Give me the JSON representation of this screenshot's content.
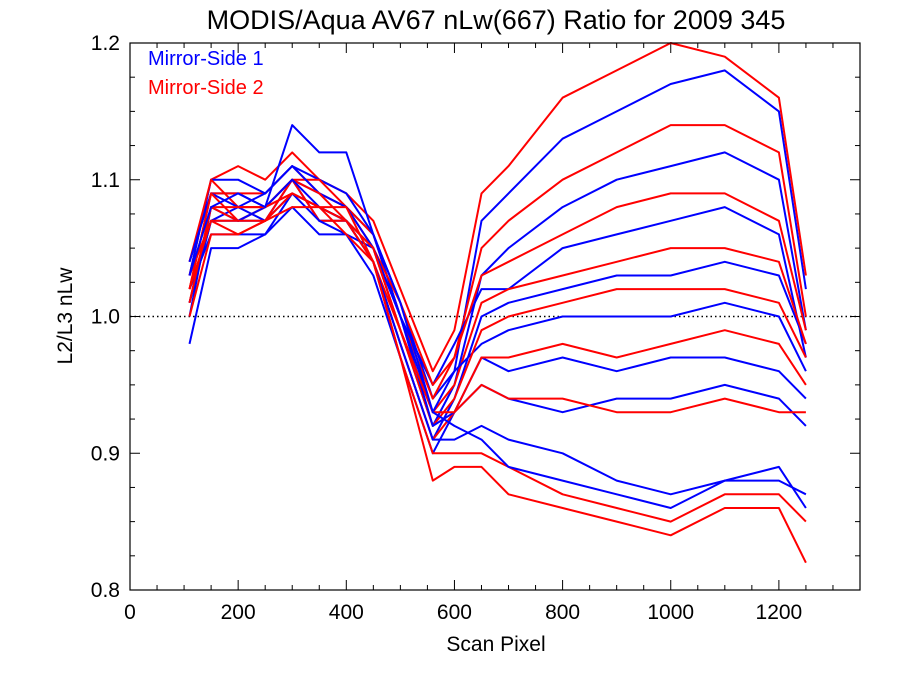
{
  "chart_data": {
    "type": "line",
    "title": "MODIS/Aqua AV67 nLw(667) Ratio for 2009 345",
    "xlabel": "Scan Pixel",
    "ylabel": "L2/L3 nLw",
    "xlim": [
      0,
      1350
    ],
    "ylim": [
      0.8,
      1.2
    ],
    "xticks": [
      0,
      200,
      400,
      600,
      800,
      1000,
      1200
    ],
    "yticks": [
      0.8,
      0.9,
      1.0,
      1.1,
      1.2
    ],
    "xtick_labels": [
      "0",
      "200",
      "400",
      "600",
      "800",
      "1000",
      "1200"
    ],
    "ytick_labels": [
      "0.8",
      "0.9",
      "1.0",
      "1.1",
      "1.2"
    ],
    "reference_line": {
      "y": 1.0,
      "style": "dotted"
    },
    "legend_position": "top-left",
    "x": [
      110,
      150,
      200,
      250,
      300,
      350,
      400,
      450,
      500,
      560,
      600,
      650,
      700,
      800,
      900,
      1000,
      1100,
      1200,
      1250
    ],
    "series": [
      {
        "name": "Mirror-Side 1",
        "color": "#0000ff",
        "lines": [
          [
            1.04,
            1.09,
            1.09,
            1.08,
            1.1,
            1.09,
            1.08,
            1.06,
            1.01,
            0.94,
            0.96,
            1.07,
            1.09,
            1.13,
            1.15,
            1.17,
            1.18,
            1.15,
            1.02
          ],
          [
            1.01,
            1.07,
            1.08,
            1.07,
            1.09,
            1.08,
            1.07,
            1.05,
            0.99,
            0.92,
            0.95,
            1.03,
            1.05,
            1.08,
            1.1,
            1.11,
            1.12,
            1.1,
            0.99
          ],
          [
            1.03,
            1.1,
            1.1,
            1.09,
            1.11,
            1.1,
            1.09,
            1.06,
            1.0,
            0.95,
            0.98,
            1.02,
            1.02,
            1.05,
            1.06,
            1.07,
            1.08,
            1.06,
            0.97
          ],
          [
            1.0,
            1.08,
            1.07,
            1.07,
            1.1,
            1.07,
            1.07,
            1.04,
            0.98,
            0.91,
            0.94,
            1.0,
            1.01,
            1.02,
            1.03,
            1.03,
            1.04,
            1.03,
            0.98
          ],
          [
            1.02,
            1.06,
            1.06,
            1.06,
            1.08,
            1.06,
            1.06,
            1.05,
            1.0,
            0.93,
            0.96,
            0.98,
            0.99,
            1.0,
            1.0,
            1.0,
            1.01,
            1.0,
            0.96
          ],
          [
            0.98,
            1.05,
            1.05,
            1.06,
            1.09,
            1.07,
            1.06,
            1.03,
            0.97,
            0.9,
            0.93,
            0.97,
            0.96,
            0.97,
            0.96,
            0.97,
            0.97,
            0.96,
            0.94
          ],
          [
            1.04,
            1.09,
            1.08,
            1.09,
            1.11,
            1.09,
            1.08,
            1.05,
            1.0,
            0.92,
            0.93,
            0.95,
            0.94,
            0.93,
            0.94,
            0.94,
            0.95,
            0.94,
            0.92
          ],
          [
            1.01,
            1.07,
            1.07,
            1.08,
            1.1,
            1.08,
            1.07,
            1.04,
            0.98,
            0.91,
            0.91,
            0.92,
            0.91,
            0.9,
            0.88,
            0.87,
            0.88,
            0.88,
            0.87
          ],
          [
            1.03,
            1.08,
            1.09,
            1.08,
            1.14,
            1.12,
            1.12,
            1.06,
            1.01,
            0.93,
            0.92,
            0.91,
            0.89,
            0.88,
            0.87,
            0.86,
            0.88,
            0.89,
            0.86
          ]
        ]
      },
      {
        "name": "Mirror-Side 2",
        "color": "#ff0000",
        "lines": [
          [
            1.03,
            1.1,
            1.11,
            1.1,
            1.12,
            1.1,
            1.09,
            1.07,
            1.02,
            0.96,
            0.99,
            1.09,
            1.11,
            1.16,
            1.18,
            1.2,
            1.19,
            1.16,
            1.03
          ],
          [
            1.02,
            1.09,
            1.09,
            1.09,
            1.11,
            1.09,
            1.08,
            1.06,
            1.0,
            0.94,
            0.97,
            1.05,
            1.07,
            1.1,
            1.12,
            1.14,
            1.14,
            1.12,
            1.0
          ],
          [
            1.04,
            1.1,
            1.08,
            1.08,
            1.1,
            1.1,
            1.08,
            1.05,
            1.01,
            0.95,
            0.97,
            1.03,
            1.04,
            1.06,
            1.08,
            1.09,
            1.09,
            1.07,
            0.99
          ],
          [
            1.01,
            1.08,
            1.07,
            1.08,
            1.09,
            1.08,
            1.07,
            1.04,
            0.99,
            0.93,
            0.95,
            1.01,
            1.02,
            1.03,
            1.04,
            1.05,
            1.05,
            1.04,
            0.98
          ],
          [
            1.03,
            1.07,
            1.06,
            1.07,
            1.1,
            1.07,
            1.07,
            1.05,
            0.99,
            0.92,
            0.94,
            0.99,
            1.0,
            1.01,
            1.02,
            1.02,
            1.02,
            1.01,
            0.97
          ],
          [
            1.0,
            1.06,
            1.06,
            1.07,
            1.08,
            1.08,
            1.06,
            1.04,
            0.98,
            0.91,
            0.93,
            0.97,
            0.97,
            0.98,
            0.97,
            0.98,
            0.99,
            0.98,
            0.95
          ],
          [
            1.02,
            1.09,
            1.07,
            1.08,
            1.1,
            1.09,
            1.07,
            1.05,
            0.99,
            0.93,
            0.93,
            0.95,
            0.94,
            0.94,
            0.93,
            0.93,
            0.94,
            0.93,
            0.93
          ],
          [
            1.01,
            1.08,
            1.08,
            1.08,
            1.09,
            1.08,
            1.08,
            1.04,
            0.97,
            0.9,
            0.9,
            0.9,
            0.89,
            0.87,
            0.86,
            0.85,
            0.87,
            0.87,
            0.85
          ],
          [
            1.02,
            1.07,
            1.07,
            1.07,
            1.09,
            1.08,
            1.07,
            1.04,
            0.97,
            0.88,
            0.89,
            0.89,
            0.87,
            0.86,
            0.85,
            0.84,
            0.86,
            0.86,
            0.82
          ]
        ]
      }
    ]
  }
}
